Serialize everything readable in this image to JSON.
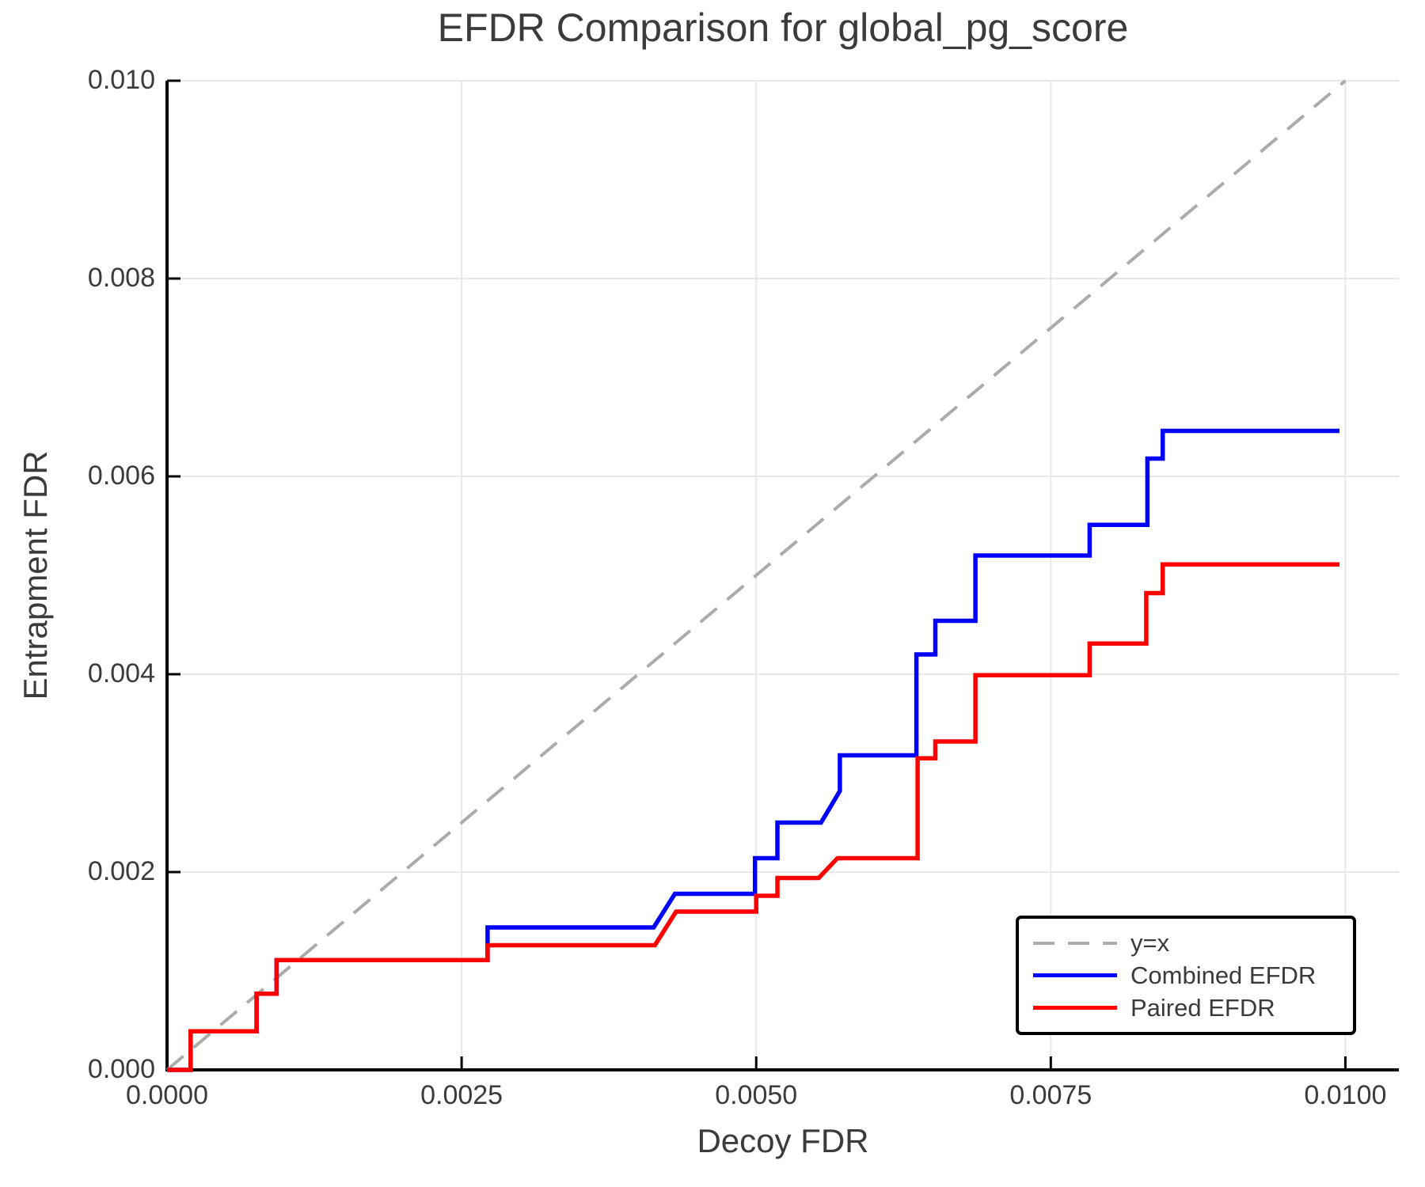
{
  "chart_data": {
    "type": "line",
    "title": "EFDR Comparison for global_pg_score",
    "xlabel": "Decoy FDR",
    "ylabel": "Entrapment FDR",
    "xlim": [
      0,
      0.010454
    ],
    "ylim": [
      0,
      0.01
    ],
    "grid": true,
    "legend_position": "lower right",
    "xticks": {
      "values": [
        0.0,
        0.0025,
        0.005,
        0.0075,
        0.01
      ],
      "labels": [
        "0.0000",
        "0.0025",
        "0.0050",
        "0.0075",
        "0.0100"
      ]
    },
    "yticks": {
      "values": [
        0.0,
        0.002,
        0.004,
        0.006,
        0.008,
        0.01
      ],
      "labels": [
        "0.000",
        "0.002",
        "0.004",
        "0.006",
        "0.008",
        "0.010"
      ]
    },
    "colors": {
      "identity_line": "#ababab",
      "combined": "#0000ff",
      "paired": "#ff0000",
      "gridline": "#e8e8e8",
      "axis": "#000000",
      "text": "#3b3b3b"
    },
    "series": [
      {
        "name": "y=x",
        "style": "dashed",
        "color": "#ababab",
        "width": 4,
        "points": [
          [
            0.0,
            0.0
          ],
          [
            0.01,
            0.01
          ]
        ]
      },
      {
        "name": "Combined EFDR",
        "style": "solid",
        "color": "#0000ff",
        "width": 5.5,
        "points": [
          [
            0.0,
            0.0
          ],
          [
            0.0002,
            0.0
          ],
          [
            0.0002,
            0.00039
          ],
          [
            0.00076,
            0.00039
          ],
          [
            0.00076,
            0.00077
          ],
          [
            0.00093,
            0.00077
          ],
          [
            0.00093,
            0.00111
          ],
          [
            0.00272,
            0.00111
          ],
          [
            0.00272,
            0.00144
          ],
          [
            0.00413,
            0.00144
          ],
          [
            0.00431,
            0.00178
          ],
          [
            0.00499,
            0.00178
          ],
          [
            0.00499,
            0.00214
          ],
          [
            0.00518,
            0.00214
          ],
          [
            0.00518,
            0.0025
          ],
          [
            0.00555,
            0.0025
          ],
          [
            0.00571,
            0.00282
          ],
          [
            0.00571,
            0.00318
          ],
          [
            0.00636,
            0.00318
          ],
          [
            0.00636,
            0.0042
          ],
          [
            0.00652,
            0.0042
          ],
          [
            0.00652,
            0.00454
          ],
          [
            0.00686,
            0.00454
          ],
          [
            0.00686,
            0.0052
          ],
          [
            0.00783,
            0.0052
          ],
          [
            0.00783,
            0.00551
          ],
          [
            0.00832,
            0.00551
          ],
          [
            0.00832,
            0.00618
          ],
          [
            0.00845,
            0.00618
          ],
          [
            0.00845,
            0.00646
          ],
          [
            0.00995,
            0.00646
          ]
        ]
      },
      {
        "name": "Paired EFDR",
        "style": "solid",
        "color": "#ff0000",
        "width": 5.5,
        "points": [
          [
            0.0,
            0.0
          ],
          [
            0.0002,
            0.0
          ],
          [
            0.0002,
            0.00039
          ],
          [
            0.00076,
            0.00039
          ],
          [
            0.00076,
            0.00077
          ],
          [
            0.00093,
            0.00077
          ],
          [
            0.00093,
            0.00111
          ],
          [
            0.00272,
            0.00111
          ],
          [
            0.00272,
            0.00126
          ],
          [
            0.00414,
            0.00126
          ],
          [
            0.00432,
            0.0016
          ],
          [
            0.005,
            0.0016
          ],
          [
            0.005,
            0.00176
          ],
          [
            0.00518,
            0.00176
          ],
          [
            0.00518,
            0.00194
          ],
          [
            0.00553,
            0.00194
          ],
          [
            0.00569,
            0.00214
          ],
          [
            0.00637,
            0.00214
          ],
          [
            0.00637,
            0.00315
          ],
          [
            0.00652,
            0.00315
          ],
          [
            0.00652,
            0.00332
          ],
          [
            0.00686,
            0.00332
          ],
          [
            0.00686,
            0.00399
          ],
          [
            0.00783,
            0.00399
          ],
          [
            0.00783,
            0.00431
          ],
          [
            0.00831,
            0.00431
          ],
          [
            0.00831,
            0.00482
          ],
          [
            0.00845,
            0.00482
          ],
          [
            0.00845,
            0.00511
          ],
          [
            0.00995,
            0.00511
          ]
        ]
      }
    ]
  }
}
